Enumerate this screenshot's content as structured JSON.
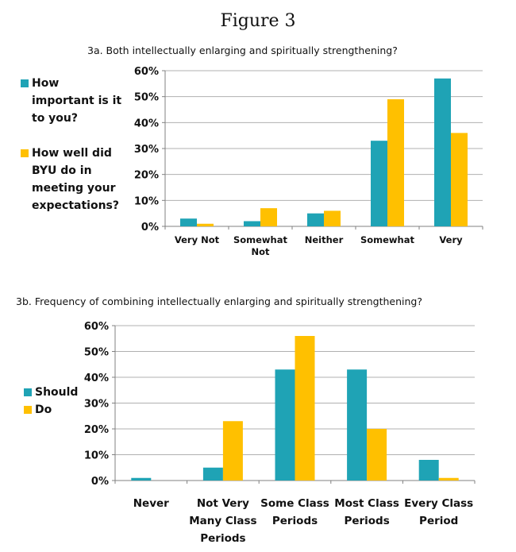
{
  "figure_title": "Figure 3",
  "colors": {
    "series1": "#1fa3b5",
    "series2": "#ffc000",
    "grid": "#b0b0b0",
    "axis": "#808080"
  },
  "chart_data": [
    {
      "type": "bar",
      "title": "3a. Both intellectually enlarging and spiritually strengthening?",
      "categories": [
        "Very Not",
        "Somewhat Not",
        "Neither",
        "Somewhat",
        "Very"
      ],
      "category_lines": [
        [
          "Very Not"
        ],
        [
          "Somewhat",
          "Not"
        ],
        [
          "Neither"
        ],
        [
          "Somewhat"
        ],
        [
          "Very"
        ]
      ],
      "series": [
        {
          "name": "How important is it to you?",
          "name_lines": [
            "How",
            "important is it",
            "to you?"
          ],
          "values": [
            3,
            2,
            5,
            33,
            57
          ]
        },
        {
          "name": "How well did BYU do in meeting your expectations?",
          "name_lines": [
            "How well did",
            "BYU do in",
            "meeting your",
            "expectations?"
          ],
          "values": [
            1,
            7,
            6,
            49,
            36
          ]
        }
      ],
      "yticks": [
        "0%",
        "10%",
        "20%",
        "30%",
        "40%",
        "50%",
        "60%"
      ],
      "ylim": [
        0,
        60
      ],
      "grid": true,
      "legend": "left"
    },
    {
      "type": "bar",
      "title": "3b. Frequency of combining intellectually enlarging and spiritually strengthening?",
      "categories": [
        "Never",
        "Not Very Many Class Periods",
        "Some Class Periods",
        "Most Class Periods",
        "Every Class Period"
      ],
      "category_lines": [
        [
          "Never"
        ],
        [
          "Not Very",
          "Many Class",
          "Periods"
        ],
        [
          "Some Class",
          "Periods"
        ],
        [
          "Most Class",
          "Periods"
        ],
        [
          "Every Class",
          "Period"
        ]
      ],
      "series": [
        {
          "name": "Should",
          "name_lines": [
            "Should"
          ],
          "values": [
            1,
            5,
            43,
            43,
            8
          ]
        },
        {
          "name": "Do",
          "name_lines": [
            "Do"
          ],
          "values": [
            0,
            23,
            56,
            20,
            1
          ]
        }
      ],
      "yticks": [
        "0%",
        "10%",
        "20%",
        "30%",
        "40%",
        "50%",
        "60%"
      ],
      "ylim": [
        0,
        60
      ],
      "grid": true,
      "legend": "left"
    }
  ]
}
